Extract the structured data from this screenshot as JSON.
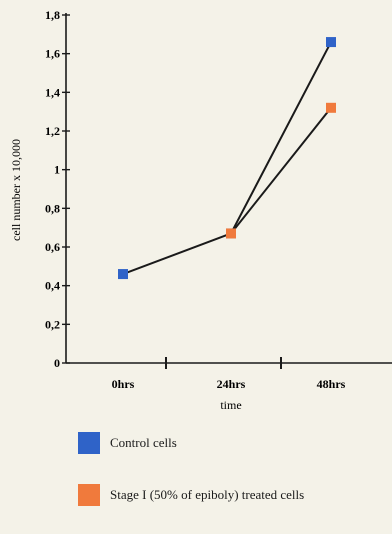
{
  "chart_data": {
    "type": "line",
    "categories": [
      "0hrs",
      "24hrs",
      "48hrs"
    ],
    "xlabel": "time",
    "ylabel": "cell number x 10,000",
    "ylim": [
      0,
      1.8
    ],
    "yticks": [
      "0",
      "0,2",
      "0,4",
      "0,6",
      "0,8",
      "1",
      "1,2",
      "1,4",
      "1,6",
      "1,8"
    ],
    "series": [
      {
        "name": "Control cells",
        "color": "#2f63c8",
        "values": [
          0.46,
          0.67,
          1.66
        ]
      },
      {
        "name": "Stage I (50% of epiboly) treated cells",
        "color": "#f07a3c",
        "values": [
          null,
          0.67,
          1.32
        ]
      }
    ]
  }
}
